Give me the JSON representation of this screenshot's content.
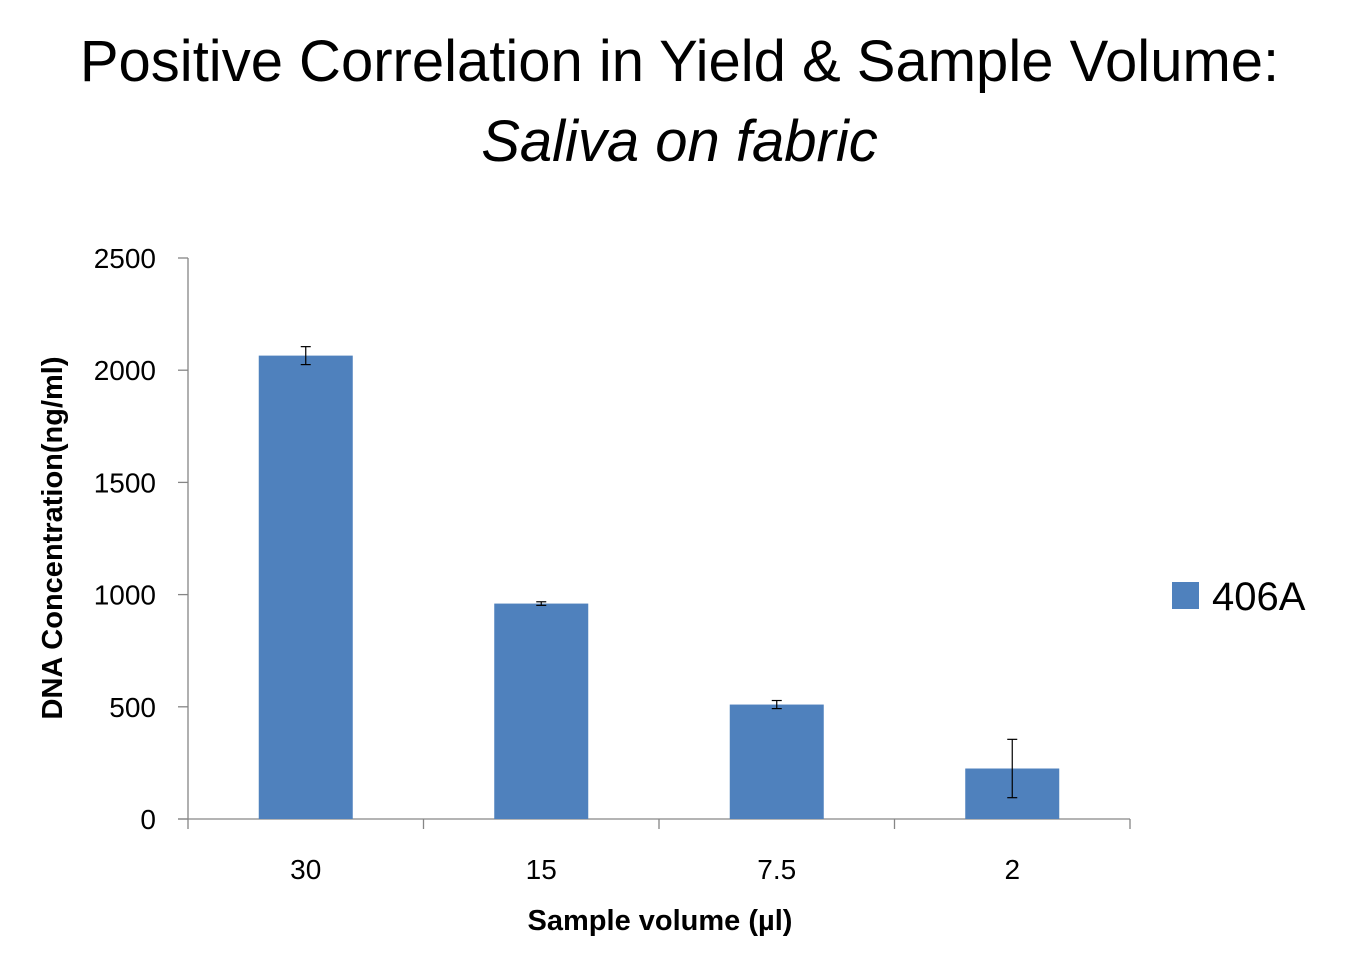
{
  "chart_data": {
    "type": "bar",
    "title": "Positive Correlation in Yield & Sample Volume:",
    "subtitle": "Saliva on fabric",
    "xlabel": "Sample volume (µl)",
    "ylabel": "DNA Concentration(ng/ml)",
    "categories": [
      "30",
      "15",
      "7.5",
      "2"
    ],
    "series": [
      {
        "name": "406A",
        "values": [
          2065,
          960,
          510,
          225
        ],
        "error": [
          40,
          8,
          18,
          130
        ],
        "color": "#4f81bd"
      }
    ],
    "ylim": [
      0,
      2500
    ],
    "yticks": [
      0,
      500,
      1000,
      1500,
      2000,
      2500
    ],
    "grid": false,
    "legend_position": "right"
  }
}
